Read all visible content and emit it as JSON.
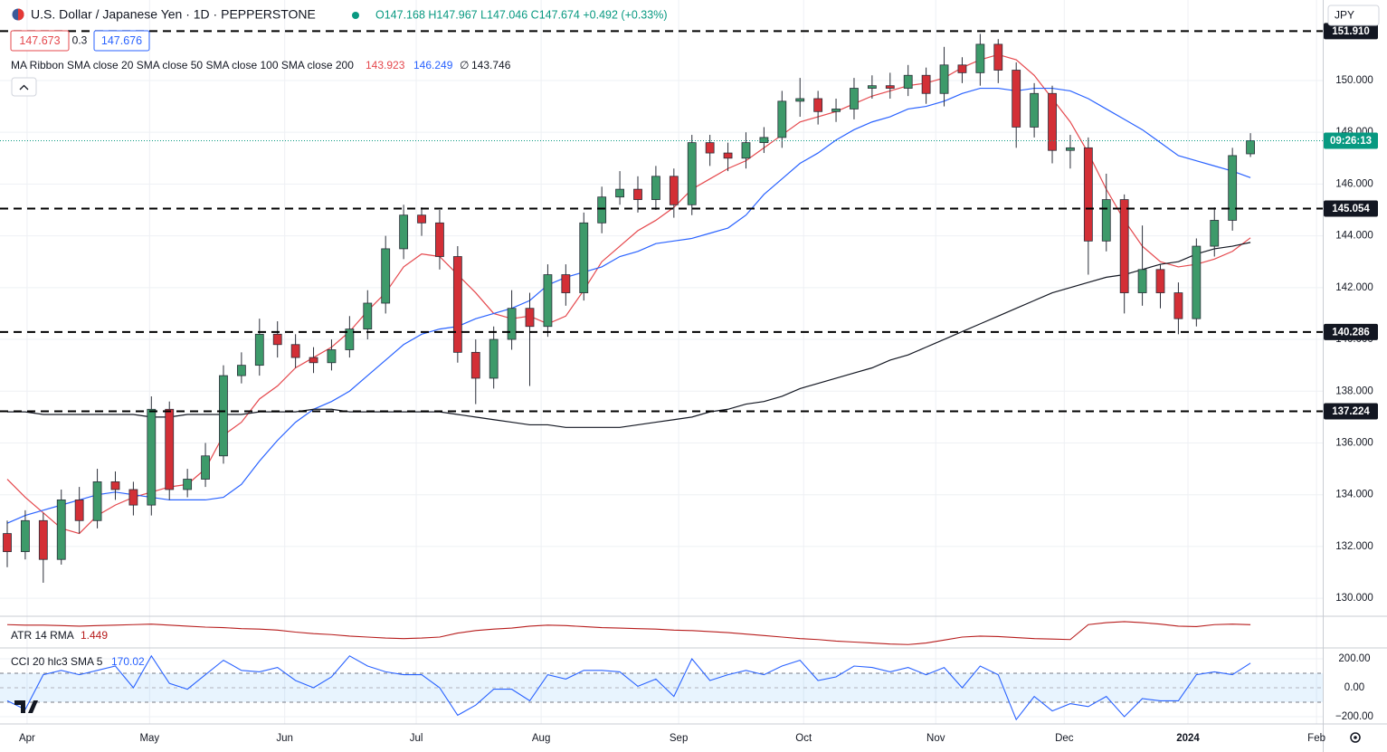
{
  "chart_data": {
    "type": "candlestick",
    "title": "U.S. Dollar / Japanese Yen · 1D · PEPPERSTONE",
    "ohlc_text": "O147.168 H147.967 L147.046 C147.674 +0.492 (+0.33%)",
    "bid": "147.673",
    "spread": "0.3",
    "ask": "147.676",
    "ma_legend": "MA Ribbon SMA close 20 SMA close 50 SMA close 100 SMA close 200",
    "ma_none": "∅",
    "countdown": "09:26:13",
    "currency": "JPY",
    "up_color": "#3d9a6a",
    "down_color": "#d32f36",
    "x": [
      0,
      3,
      6,
      9,
      12,
      15,
      18,
      21,
      24,
      27,
      30,
      33,
      36,
      39,
      42,
      45,
      48,
      51,
      54,
      57,
      60,
      63,
      66,
      69,
      72,
      75,
      78,
      81,
      84,
      87,
      90,
      93,
      96,
      99,
      102,
      105,
      108,
      111,
      114,
      117,
      120,
      123,
      126,
      129,
      132,
      135,
      138,
      141,
      144,
      147,
      150,
      153,
      156,
      159,
      162,
      165,
      168,
      171,
      174,
      177,
      180,
      183,
      186,
      189,
      192,
      195,
      198,
      201,
      204,
      207
    ],
    "xlim": [
      -1.205,
      219.04
    ],
    "xticks": [
      {
        "value": 3.3,
        "label": "Apr"
      },
      {
        "value": 23.7,
        "label": "May"
      },
      {
        "value": 46.2,
        "label": "Jun"
      },
      {
        "value": 68.1,
        "label": "Jul"
      },
      {
        "value": 88.9,
        "label": "Aug"
      },
      {
        "value": 111.8,
        "label": "Sep"
      },
      {
        "value": 132.6,
        "label": "Oct"
      },
      {
        "value": 154.6,
        "label": "Nov"
      },
      {
        "value": 176.0,
        "label": "Dec"
      },
      {
        "value": 196.6,
        "label": "2024"
      },
      {
        "value": 218.0,
        "label": "Feb"
      }
    ],
    "open": [
      132.5,
      131.8,
      133.0,
      131.5,
      133.8,
      133.0,
      134.5,
      134.2,
      133.6,
      137.3,
      134.2,
      134.6,
      135.5,
      138.6,
      139.0,
      140.2,
      139.8,
      139.3,
      139.1,
      139.6,
      140.4,
      141.4,
      143.5,
      144.8,
      144.5,
      143.2,
      139.5,
      138.5,
      140.0,
      141.2,
      140.5,
      142.5,
      141.8,
      144.5,
      145.5,
      145.8,
      145.4,
      146.3,
      145.2,
      147.6,
      147.2,
      147.0,
      147.6,
      147.8,
      149.2,
      149.3,
      148.8,
      148.9,
      149.7,
      149.8,
      149.7,
      150.2,
      149.5,
      150.6,
      150.3,
      151.4,
      150.4,
      148.2,
      149.5,
      147.3,
      147.4,
      143.8,
      145.4,
      141.8,
      142.7,
      141.8,
      140.8,
      143.6,
      144.6,
      147.168
    ],
    "high": [
      133.0,
      133.4,
      133.3,
      134.2,
      134.3,
      135.0,
      134.9,
      134.5,
      137.8,
      137.6,
      135.0,
      136.0,
      139.0,
      139.5,
      140.8,
      140.7,
      140.2,
      139.7,
      140.0,
      140.9,
      141.9,
      144.0,
      145.2,
      145.1,
      145.0,
      143.6,
      140.0,
      140.5,
      141.9,
      141.8,
      142.9,
      142.9,
      144.9,
      145.9,
      146.5,
      146.3,
      146.7,
      146.6,
      147.9,
      147.9,
      147.6,
      148.0,
      148.2,
      149.6,
      150.1,
      149.6,
      149.3,
      150.1,
      150.2,
      150.3,
      150.6,
      150.5,
      151.3,
      150.9,
      151.8,
      151.6,
      150.7,
      149.9,
      149.8,
      147.9,
      147.8,
      146.4,
      145.6,
      144.4,
      142.9,
      142.2,
      143.9,
      145.1,
      147.4,
      147.967
    ],
    "low": [
      131.2,
      131.5,
      130.6,
      131.3,
      132.5,
      132.7,
      133.8,
      133.2,
      133.2,
      133.8,
      133.9,
      134.3,
      135.2,
      138.3,
      138.6,
      139.3,
      138.9,
      138.7,
      138.8,
      139.3,
      140.0,
      141.0,
      143.1,
      144.0,
      142.7,
      139.1,
      137.5,
      138.1,
      139.6,
      138.2,
      140.1,
      141.3,
      141.5,
      144.1,
      145.2,
      144.9,
      145.0,
      144.7,
      144.8,
      146.7,
      146.5,
      146.6,
      147.2,
      147.4,
      148.6,
      148.3,
      148.4,
      148.5,
      149.3,
      149.3,
      149.4,
      149.1,
      149.0,
      149.9,
      149.8,
      149.9,
      147.4,
      147.8,
      146.8,
      146.6,
      142.5,
      143.4,
      141.0,
      141.3,
      141.2,
      140.2,
      140.5,
      143.2,
      144.2,
      147.046
    ],
    "close": [
      131.8,
      133.0,
      131.5,
      133.8,
      133.0,
      134.5,
      134.2,
      133.6,
      137.3,
      134.2,
      134.6,
      135.5,
      138.6,
      139.0,
      140.2,
      139.8,
      139.3,
      139.1,
      139.6,
      140.4,
      141.4,
      143.5,
      144.8,
      144.5,
      143.2,
      139.5,
      138.5,
      140.0,
      141.2,
      140.5,
      142.5,
      141.8,
      144.5,
      145.5,
      145.8,
      145.4,
      146.3,
      145.2,
      147.6,
      147.2,
      147.0,
      147.6,
      147.8,
      149.2,
      149.3,
      148.8,
      148.9,
      149.7,
      149.8,
      149.7,
      150.2,
      149.5,
      150.6,
      150.3,
      151.4,
      150.4,
      148.2,
      149.5,
      147.3,
      147.4,
      143.8,
      145.4,
      141.8,
      142.7,
      141.8,
      140.8,
      143.6,
      144.6,
      147.1,
      147.674
    ],
    "ylim": [
      129.34,
      153.11
    ],
    "yticks": [
      {
        "value": 130,
        "label": "130.000"
      },
      {
        "value": 132,
        "label": "132.000"
      },
      {
        "value": 134,
        "label": "134.000"
      },
      {
        "value": 136,
        "label": "136.000"
      },
      {
        "value": 138,
        "label": "138.000"
      },
      {
        "value": 140,
        "label": "140.000"
      },
      {
        "value": 142,
        "label": "142.000"
      },
      {
        "value": 144,
        "label": "144.000"
      },
      {
        "value": 146,
        "label": "146.000"
      },
      {
        "value": 148,
        "label": "148.000"
      },
      {
        "value": 150,
        "label": "150.000"
      }
    ],
    "grid": true,
    "levels": [
      {
        "value": 151.91,
        "label": "151.910"
      },
      145.054,
      140.286,
      137.224
    ],
    "series": [
      {
        "color": "#e5484d",
        "values": [
          134.6,
          133.9,
          133.3,
          132.7,
          132.5,
          133.2,
          133.6,
          133.9,
          134.1,
          134.3,
          134.4,
          135.0,
          136.3,
          136.8,
          137.7,
          138.2,
          138.9,
          139.3,
          139.7,
          140.3,
          141.1,
          141.8,
          142.8,
          143.3,
          143.2,
          142.5,
          141.8,
          141.0,
          140.8,
          140.9,
          140.6,
          140.9,
          141.9,
          143.0,
          143.6,
          144.2,
          144.6,
          145.1,
          145.8,
          146.2,
          146.6,
          146.9,
          147.4,
          147.9,
          148.4,
          148.6,
          148.8,
          149.1,
          149.4,
          149.6,
          149.8,
          149.9,
          150.1,
          150.5,
          150.8,
          151.0,
          150.8,
          150.2,
          149.3,
          148.4,
          147.2,
          145.8,
          144.6,
          143.6,
          143.0,
          142.8,
          142.9,
          143.1,
          143.4,
          143.923
        ]
      },
      {
        "color": "#2962ff",
        "values": [
          132.9,
          133.2,
          133.4,
          133.6,
          133.8,
          134.0,
          134.1,
          134.0,
          133.9,
          133.8,
          133.8,
          133.8,
          133.9,
          134.4,
          135.3,
          136.1,
          136.8,
          137.3,
          137.6,
          138.0,
          138.6,
          139.2,
          139.8,
          140.2,
          140.4,
          140.5,
          140.8,
          141.0,
          141.2,
          141.5,
          142.1,
          142.4,
          142.6,
          142.8,
          143.2,
          143.4,
          143.7,
          143.8,
          143.9,
          144.1,
          144.3,
          144.8,
          145.6,
          146.2,
          146.8,
          147.2,
          147.7,
          148.1,
          148.4,
          148.6,
          148.9,
          149.0,
          149.2,
          149.5,
          149.7,
          149.7,
          149.6,
          149.7,
          149.7,
          149.6,
          149.3,
          148.9,
          148.5,
          148.1,
          147.6,
          147.1,
          146.9,
          146.7,
          146.5,
          146.249
        ]
      },
      {
        "color": "#131722",
        "values": [
          137.2,
          137.2,
          137.1,
          137.1,
          137.1,
          137.1,
          137.1,
          137.1,
          137.0,
          137.0,
          137.1,
          137.1,
          137.1,
          137.1,
          137.2,
          137.2,
          137.2,
          137.3,
          137.3,
          137.2,
          137.2,
          137.2,
          137.2,
          137.2,
          137.2,
          137.1,
          137.0,
          136.9,
          136.8,
          136.7,
          136.7,
          136.6,
          136.6,
          136.6,
          136.6,
          136.7,
          136.8,
          136.9,
          137.0,
          137.2,
          137.3,
          137.5,
          137.6,
          137.8,
          138.1,
          138.3,
          138.5,
          138.7,
          138.9,
          139.2,
          139.4,
          139.7,
          140.0,
          140.3,
          140.6,
          140.9,
          141.2,
          141.5,
          141.8,
          142.0,
          142.2,
          142.4,
          142.5,
          142.7,
          142.9,
          143.0,
          143.3,
          143.5,
          143.6,
          143.746
        ]
      }
    ],
    "atr": {
      "label": "ATR 14 RMA",
      "color": "#b71c1c",
      "ylim": [
        1.0,
        1.6
      ],
      "values": [
        1.45,
        1.44,
        1.44,
        1.43,
        1.42,
        1.43,
        1.44,
        1.45,
        1.46,
        1.44,
        1.42,
        1.4,
        1.39,
        1.37,
        1.36,
        1.34,
        1.3,
        1.27,
        1.25,
        1.22,
        1.2,
        1.18,
        1.17,
        1.18,
        1.2,
        1.28,
        1.33,
        1.36,
        1.38,
        1.42,
        1.44,
        1.43,
        1.41,
        1.39,
        1.38,
        1.37,
        1.36,
        1.34,
        1.33,
        1.31,
        1.29,
        1.26,
        1.23,
        1.2,
        1.17,
        1.15,
        1.12,
        1.1,
        1.08,
        1.06,
        1.05,
        1.08,
        1.14,
        1.2,
        1.22,
        1.21,
        1.19,
        1.17,
        1.16,
        1.15,
        1.45,
        1.49,
        1.51,
        1.49,
        1.46,
        1.42,
        1.41,
        1.45,
        1.46,
        1.449
      ]
    },
    "cci": {
      "label": "CCI 20 hlc3 SMA 5",
      "color": "#2962ff",
      "ylim": [
        -250,
        268.75
      ],
      "band": [
        -100,
        100
      ],
      "yticks": [
        {
          "value": 200,
          "label": "200.00"
        },
        {
          "value": 0,
          "label": "0.00"
        },
        {
          "value": -200,
          "label": "−200.00"
        }
      ],
      "values": [
        -90,
        -150,
        90,
        120,
        90,
        120,
        150,
        0,
        220,
        30,
        -10,
        90,
        190,
        120,
        110,
        140,
        50,
        0,
        75,
        220,
        150,
        110,
        90,
        90,
        0,
        -190,
        -120,
        -10,
        -10,
        -90,
        90,
        60,
        120,
        120,
        110,
        10,
        60,
        -60,
        200,
        50,
        90,
        120,
        90,
        150,
        190,
        50,
        75,
        150,
        140,
        110,
        140,
        90,
        140,
        0,
        150,
        90,
        -220,
        -60,
        -160,
        -110,
        -130,
        -60,
        -200,
        -75,
        -90,
        -90,
        90,
        110,
        90,
        170.02
      ]
    }
  }
}
